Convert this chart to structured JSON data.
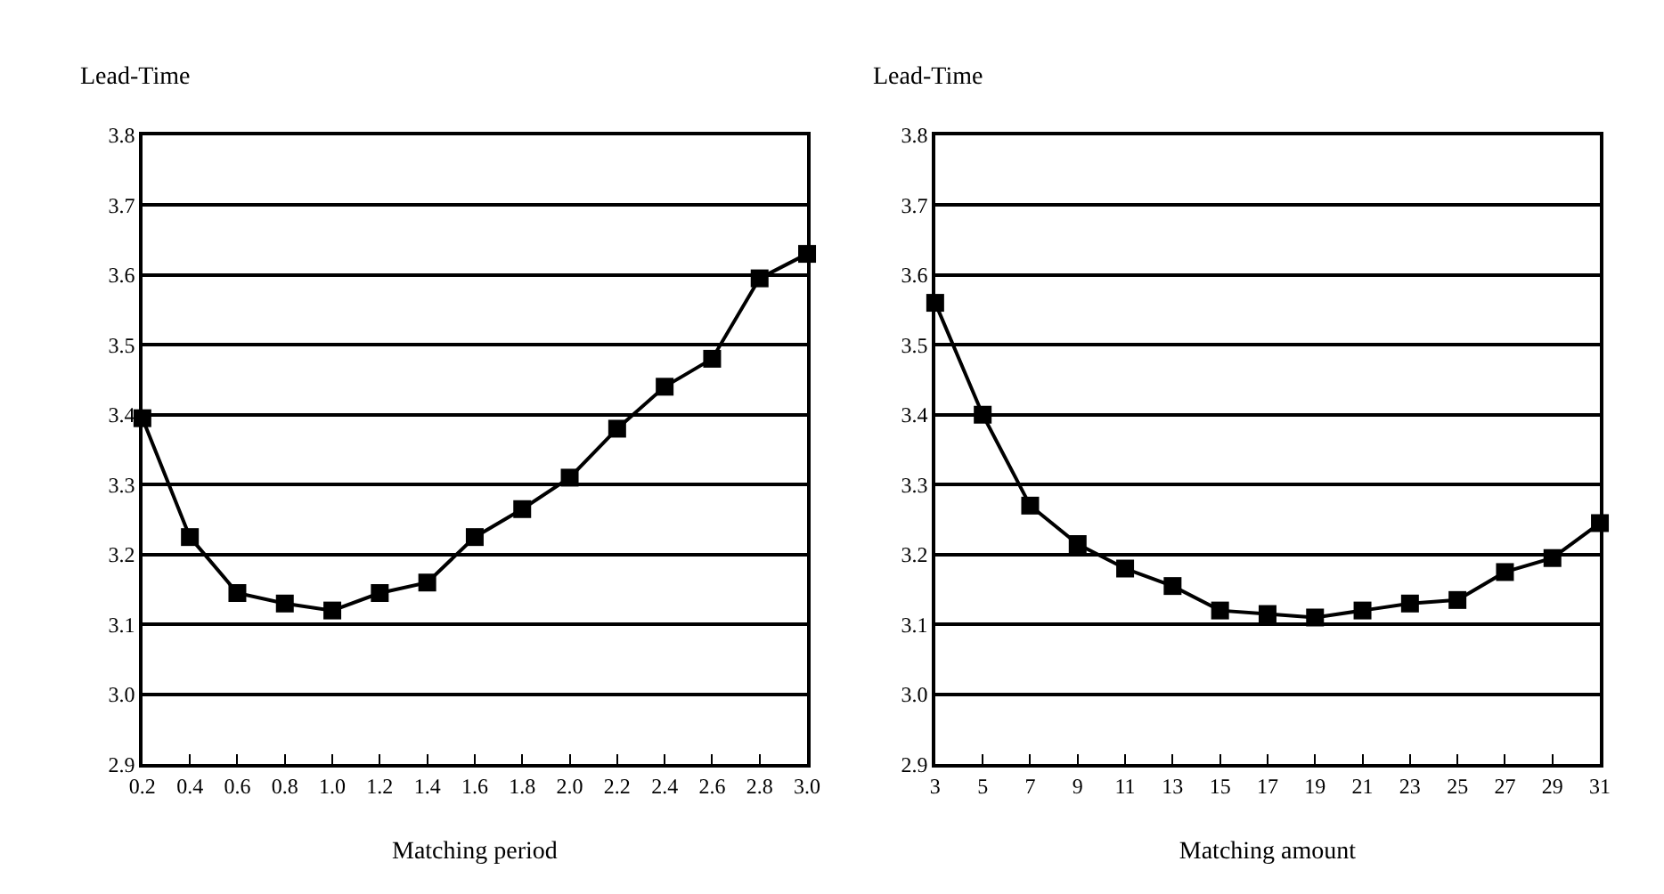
{
  "chart_data": [
    {
      "type": "line",
      "ylabel": "Lead-Time",
      "xlabel": "Matching period",
      "x": [
        0.2,
        0.4,
        0.6,
        0.8,
        1.0,
        1.2,
        1.4,
        1.6,
        1.8,
        2.0,
        2.2,
        2.4,
        2.6,
        2.8,
        3.0
      ],
      "series": [
        {
          "color": "#000000",
          "values": [
            3.395,
            3.225,
            3.145,
            3.13,
            3.12,
            3.145,
            3.16,
            3.225,
            3.265,
            3.31,
            3.38,
            3.44,
            3.48,
            3.595,
            3.63
          ]
        }
      ],
      "xlim": [
        0.2,
        3.0
      ],
      "xticks": [
        {
          "value": 0.2,
          "label": "0.2"
        },
        {
          "value": 0.4,
          "label": "0.4"
        },
        {
          "value": 0.6,
          "label": "0.6"
        },
        {
          "value": 0.8,
          "label": "0.8"
        },
        {
          "value": 1.0,
          "label": "1.0"
        },
        {
          "value": 1.2,
          "label": "1.2"
        },
        {
          "value": 1.4,
          "label": "1.4"
        },
        {
          "value": 1.6,
          "label": "1.6"
        },
        {
          "value": 1.8,
          "label": "1.8"
        },
        {
          "value": 2.0,
          "label": "2.0"
        },
        {
          "value": 2.2,
          "label": "2.2"
        },
        {
          "value": 2.4,
          "label": "2.4"
        },
        {
          "value": 2.6,
          "label": "2.6"
        },
        {
          "value": 2.8,
          "label": "2.8"
        },
        {
          "value": 3.0,
          "label": "3.0"
        }
      ],
      "ylim": [
        2.9,
        3.8
      ],
      "yticks": [
        2.9,
        {
          "value": 3.0,
          "label": "3.0"
        },
        3.1,
        3.2,
        3.3,
        3.4,
        3.5,
        3.6,
        3.7,
        3.8
      ],
      "grid": "y",
      "marker": "square",
      "line_style": "solid"
    },
    {
      "type": "line",
      "ylabel": "Lead-Time",
      "xlabel": "Matching amount",
      "x": [
        3,
        5,
        7,
        9,
        11,
        13,
        15,
        17,
        19,
        21,
        23,
        25,
        27,
        29,
        31
      ],
      "series": [
        {
          "color": "#000000",
          "values": [
            3.56,
            3.4,
            3.27,
            3.215,
            3.18,
            3.155,
            3.12,
            3.115,
            3.11,
            3.12,
            3.13,
            3.135,
            3.175,
            3.195,
            3.245
          ]
        }
      ],
      "xlim": [
        3,
        31
      ],
      "xticks": [
        3,
        5,
        7,
        9,
        11,
        13,
        15,
        17,
        19,
        21,
        23,
        25,
        27,
        29,
        31
      ],
      "ylim": [
        2.9,
        3.8
      ],
      "yticks": [
        2.9,
        {
          "value": 3.0,
          "label": "3.0"
        },
        3.1,
        3.2,
        3.3,
        3.4,
        3.5,
        3.6,
        3.7,
        3.8
      ],
      "grid": "y",
      "marker": "square",
      "line_style": "solid"
    }
  ]
}
